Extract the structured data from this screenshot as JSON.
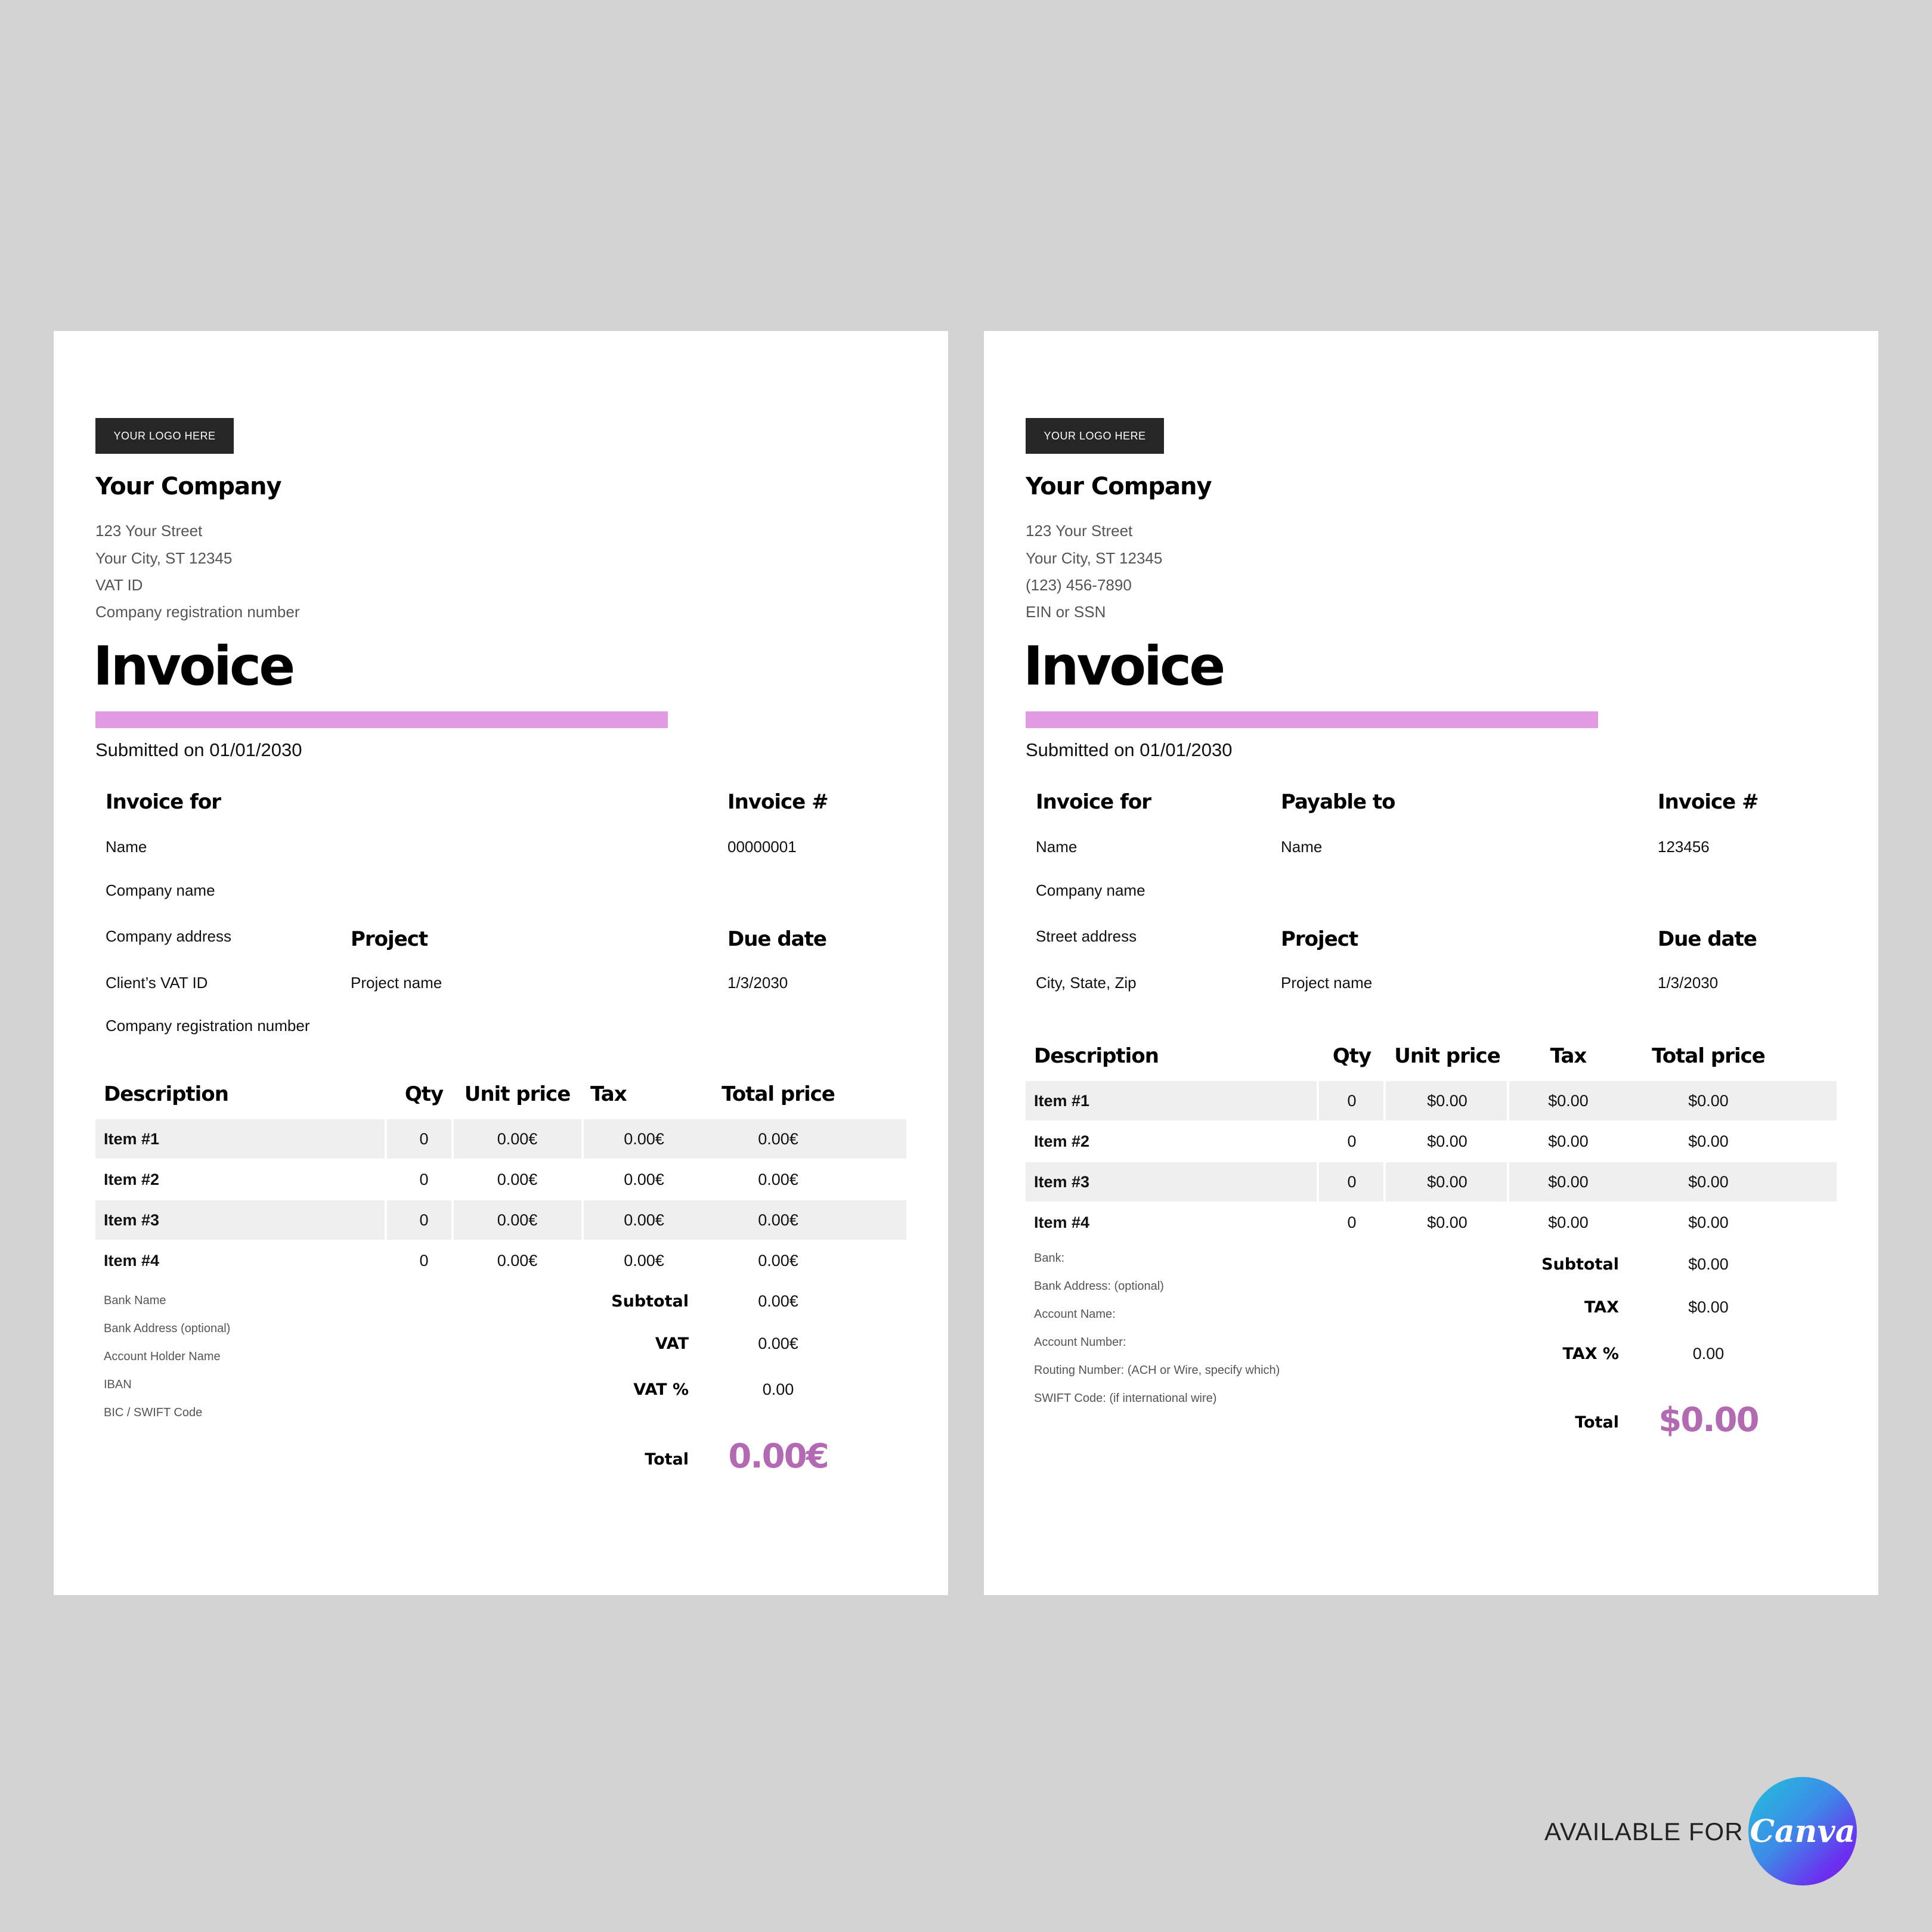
{
  "left": {
    "logo": "YOUR LOGO HERE",
    "company": "Your Company",
    "address": [
      "123 Your Street",
      "Your City, ST 12345",
      "VAT ID",
      "Company registration number"
    ],
    "title": "Invoice",
    "submitted": "Submitted on 01/01/2030",
    "invoice_for": {
      "heading": "Invoice for",
      "lines": [
        "Name",
        "Company name",
        "Company address",
        "Client’s VAT ID",
        "Company registration number"
      ]
    },
    "invoice_no": {
      "heading": "Invoice #",
      "value": "00000001"
    },
    "project": {
      "heading": "Project",
      "value": "Project name"
    },
    "due": {
      "heading": "Due date",
      "value": "1/3/2030"
    },
    "table": {
      "headers": [
        "Description",
        "Qty",
        "Unit price",
        "Tax",
        "Total price"
      ],
      "rows": [
        [
          "Item #1",
          "0",
          "0.00€",
          "0.00€",
          "0.00€"
        ],
        [
          "Item #2",
          "0",
          "0.00€",
          "0.00€",
          "0.00€"
        ],
        [
          "Item #3",
          "0",
          "0.00€",
          "0.00€",
          "0.00€"
        ],
        [
          "Item #4",
          "0",
          "0.00€",
          "0.00€",
          "0.00€"
        ]
      ]
    },
    "bank": [
      "Bank Name",
      "Bank Address (optional)",
      "Account Holder Name",
      "IBAN",
      "BIC / SWIFT Code"
    ],
    "summary": {
      "subtotal_label": "Subtotal",
      "subtotal": "0.00€",
      "tax_label": "VAT",
      "tax": "0.00€",
      "taxpct_label": "VAT %",
      "taxpct": "0.00",
      "total_label": "Total",
      "total": "0.00€"
    }
  },
  "right": {
    "logo": "YOUR LOGO HERE",
    "company": "Your Company",
    "address": [
      "123 Your Street",
      "Your City, ST 12345",
      "(123) 456-7890",
      "EIN or SSN"
    ],
    "title": "Invoice",
    "submitted": "Submitted on 01/01/2030",
    "invoice_for": {
      "heading": "Invoice for",
      "lines": [
        "Name",
        "Company name",
        "Street address",
        "City, State, Zip"
      ]
    },
    "payable_to": {
      "heading": "Payable to",
      "value": "Name"
    },
    "invoice_no": {
      "heading": "Invoice #",
      "value": "123456"
    },
    "project": {
      "heading": "Project",
      "value": "Project name"
    },
    "due": {
      "heading": "Due date",
      "value": "1/3/2030"
    },
    "table": {
      "headers": [
        "Description",
        "Qty",
        "Unit price",
        "Tax",
        "Total price"
      ],
      "rows": [
        [
          "Item #1",
          "0",
          "$0.00",
          "$0.00",
          "$0.00"
        ],
        [
          "Item #2",
          "0",
          "$0.00",
          "$0.00",
          "$0.00"
        ],
        [
          "Item #3",
          "0",
          "$0.00",
          "$0.00",
          "$0.00"
        ],
        [
          "Item #4",
          "0",
          "$0.00",
          "$0.00",
          "$0.00"
        ]
      ]
    },
    "bank": [
      "Bank:",
      "Bank Address: (optional)",
      "Account Name:",
      "Account Number:",
      "Routing Number:  (ACH or Wire, specify which)",
      "SWIFT Code: (if international wire)"
    ],
    "summary": {
      "subtotal_label": "Subtotal",
      "subtotal": "$0.00",
      "tax_label": "TAX",
      "tax": "$0.00",
      "taxpct_label": "TAX %",
      "taxpct": "0.00",
      "total_label": "Total",
      "total": "$0.00"
    }
  },
  "promo": {
    "label": "AVAILABLE FOR",
    "brand": "Canva"
  },
  "colors": {
    "accent_bar": "#e29be2",
    "total": "#b36ab3",
    "background": "#d3d3d3"
  }
}
